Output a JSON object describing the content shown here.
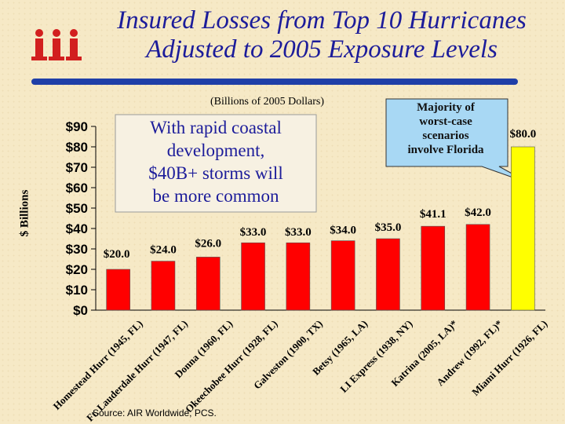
{
  "title": {
    "line1": "Insured Losses from Top 10 Hurricanes",
    "line2": "Adjusted to 2005 Exposure Levels"
  },
  "subtitle": "(Billions of 2005 Dollars)",
  "callout": {
    "line1": "With rapid coastal",
    "line2": "development,",
    "line3": "$40B+ storms will",
    "line4": "be more common"
  },
  "florida_callout": {
    "line1": "Majority of",
    "line2": "worst-case",
    "line3": "scenarios",
    "line4": "involve Florida"
  },
  "source": "Source: AIR Worldwide; PCS.",
  "logo_icon": "iii-logo-icon",
  "colors": {
    "bar": "#ff0000",
    "highlight_bar": "#ffff00",
    "title": "#1c1c9a",
    "rule": "#1f3fa8",
    "callout_fill": "#f7f1e2",
    "florida_fill": "#a8d8f4"
  },
  "chart_data": {
    "type": "bar",
    "title": "Insured Losses from Top 10 Hurricanes Adjusted to 2005 Exposure Levels",
    "ylabel": "$ Billions",
    "xlabel": "",
    "ylim": [
      0,
      90
    ],
    "yticks": [
      0,
      10,
      20,
      30,
      40,
      50,
      60,
      70,
      80,
      90
    ],
    "ytick_labels": [
      "$0",
      "$10",
      "$20",
      "$30",
      "$40",
      "$50",
      "$60",
      "$70",
      "$80",
      "$90"
    ],
    "categories": [
      "Homestead Hurr (1945, FL)",
      "Ft. Lauderdale Hurr (1947, FL)",
      "Donna (1960, FL)",
      "Okeechobee Hurr (1928, FL)",
      "Galveston (1900, TX)",
      "Betsy (1965, LA)",
      "LI Express (1938, NY)",
      "Katrina (2005, LA)*",
      "Andrew (1992, FL)*",
      "Miami Hurr (1926, FL)"
    ],
    "values": [
      20.0,
      24.0,
      26.0,
      33.0,
      33.0,
      34.0,
      35.0,
      41.1,
      42.0,
      80.0
    ],
    "value_labels": [
      "$20.0",
      "$24.0",
      "$26.0",
      "$33.0",
      "$33.0",
      "$34.0",
      "$35.0",
      "$41.1",
      "$42.0",
      "$80.0"
    ],
    "highlight_index": 9
  }
}
